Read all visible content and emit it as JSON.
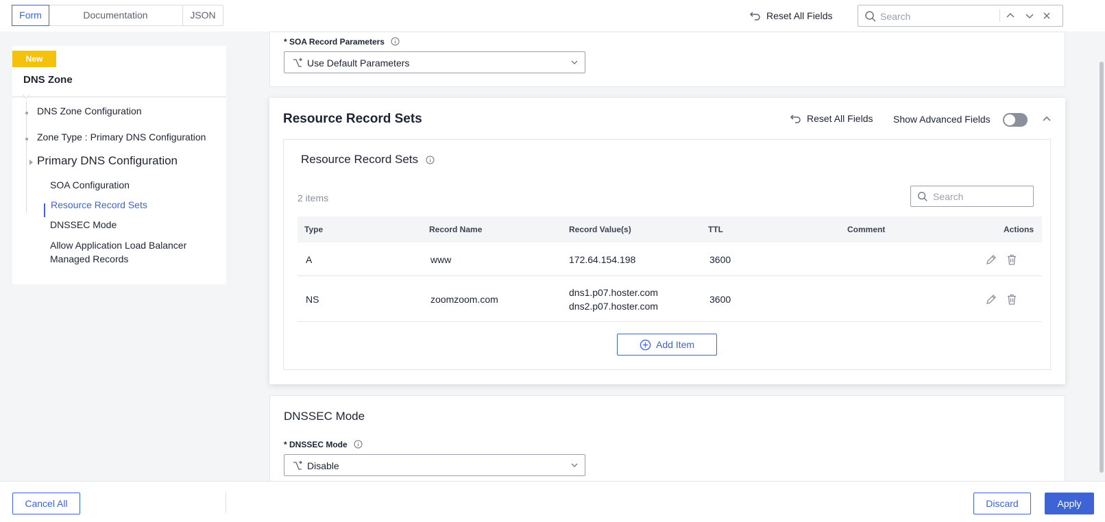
{
  "tabs": [
    "Form",
    "Documentation",
    "JSON"
  ],
  "toolbar": {
    "reset_all": "Reset All Fields",
    "search_placeholder": "Search"
  },
  "sidebar": {
    "badge": "New",
    "title": "DNS Zone",
    "items": [
      "DNS Zone Configuration",
      "Zone Type : Primary DNS Configuration",
      "Primary DNS Configuration",
      "SOA Configuration",
      "Resource Record Sets",
      "DNSSEC Mode",
      "Allow Application Load Balancer",
      "Managed Records"
    ]
  },
  "soa": {
    "label": "SOA Record Parameters",
    "value": "Use Default Parameters"
  },
  "rrs": {
    "title": "Resource Record Sets",
    "reset_all": "Reset All Fields",
    "show_advanced": "Show Advanced Fields",
    "inner_title": "Resource Record Sets",
    "count": "2 items",
    "search_placeholder": "Search",
    "columns": [
      "Type",
      "Record Name",
      "Record Value(s)",
      "TTL",
      "Comment",
      "Actions"
    ],
    "rows": [
      {
        "type": "A",
        "name": "www",
        "values": [
          "172.64.154.198"
        ],
        "ttl": "3600",
        "comment": ""
      },
      {
        "type": "NS",
        "name": "zoomzoom.com",
        "values": [
          "dns1.p07.hoster.com",
          "dns2.p07.hoster.com"
        ],
        "ttl": "3600",
        "comment": ""
      }
    ],
    "add_item": "Add Item"
  },
  "dnssec": {
    "title": "DNSSEC Mode",
    "label": "DNSSEC Mode",
    "value": "Disable"
  },
  "footer": {
    "cancel_all": "Cancel All",
    "discard": "Discard",
    "apply": "Apply"
  },
  "colors": {
    "accent": "#3d63d6",
    "badge": "#f4c20d"
  },
  "icons": [
    "reset-icon",
    "search-icon",
    "chevron-up-icon",
    "chevron-down-icon",
    "close-icon",
    "info-icon",
    "route-icon",
    "edit-icon",
    "trash-icon",
    "plus-circle-icon"
  ]
}
